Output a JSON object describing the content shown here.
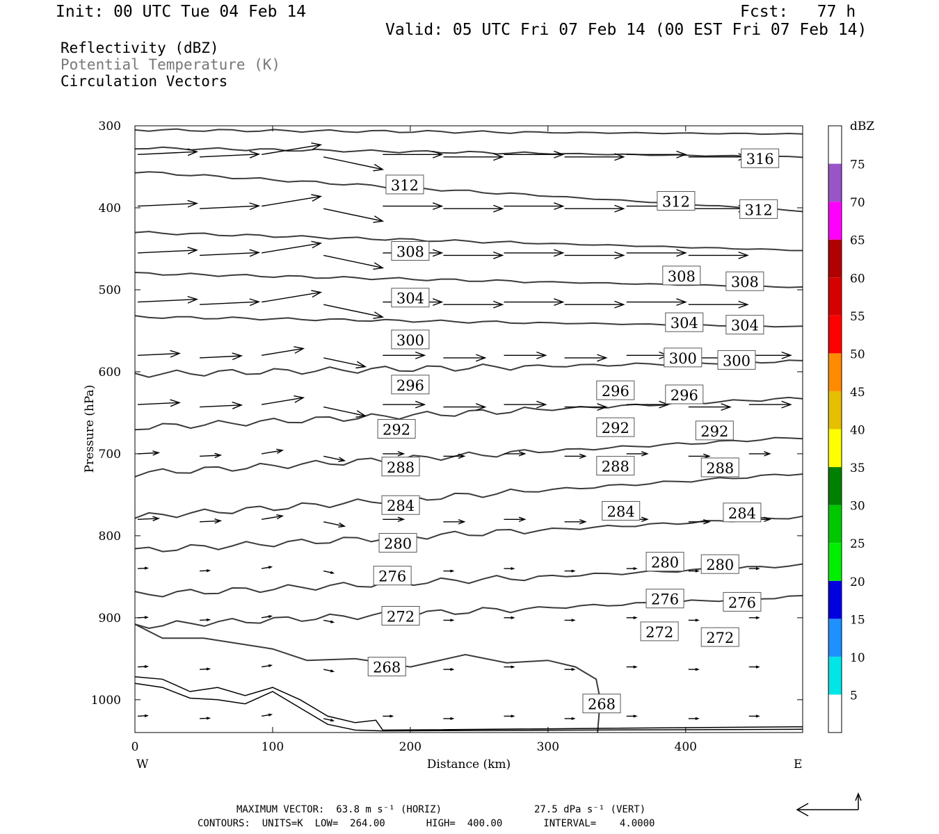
{
  "header": {
    "init": "Init: 00 UTC Tue 04 Feb 14",
    "fcst": "Fcst:   77 h",
    "valid": "Valid: 05 UTC Fri 07 Feb 14 (00 EST Fri 07 Feb 14)"
  },
  "legend": {
    "reflectivity": "Reflectivity (dBZ)",
    "theta": "Potential Temperature (K)",
    "vectors": "Circulation Vectors"
  },
  "footer": {
    "max_vector": "MAXIMUM VECTOR:  63.8 m s⁻¹ (HORIZ)",
    "max_vector_vert": "27.5 dPa s⁻¹ (VERT)",
    "contours": "CONTOURS:  UNITS=K  LOW=  264.00       HIGH=  400.00       INTERVAL=    4.0000"
  },
  "chart_data": {
    "type": "line",
    "xlabel": "Distance (km)",
    "ylabel": "Pressure (hPa)",
    "xlim": [
      0,
      485
    ],
    "ylim": [
      1040,
      300
    ],
    "x_ticks": [
      0,
      100,
      200,
      300,
      400
    ],
    "y_ticks": [
      300,
      400,
      500,
      600,
      700,
      800,
      900,
      1000
    ],
    "x_left_label": "W",
    "x_right_label": "E",
    "colorbar": {
      "unit": "dBZ",
      "ticks": [
        "5",
        "10",
        "15",
        "20",
        "25",
        "30",
        "35",
        "40",
        "45",
        "50",
        "55",
        "60",
        "65",
        "70",
        "75"
      ],
      "colors": [
        "#ffffff",
        "#00e5e5",
        "#1e90ff",
        "#0000e0",
        "#00ee00",
        "#00c800",
        "#008000",
        "#ffff00",
        "#e6c000",
        "#ff8c00",
        "#ff0000",
        "#d60000",
        "#b00000",
        "#ff00ff",
        "#9955c8",
        "#ffffff"
      ]
    },
    "contour_labels": [
      {
        "text": "316",
        "x": 454,
        "p": 340
      },
      {
        "text": "312",
        "x": 196,
        "p": 372
      },
      {
        "text": "312",
        "x": 393,
        "p": 392
      },
      {
        "text": "312",
        "x": 453,
        "p": 402
      },
      {
        "text": "308",
        "x": 200,
        "p": 453
      },
      {
        "text": "308",
        "x": 397,
        "p": 483
      },
      {
        "text": "308",
        "x": 443,
        "p": 490
      },
      {
        "text": "304",
        "x": 200,
        "p": 510
      },
      {
        "text": "304",
        "x": 399,
        "p": 540
      },
      {
        "text": "304",
        "x": 443,
        "p": 543
      },
      {
        "text": "300",
        "x": 200,
        "p": 561
      },
      {
        "text": "300",
        "x": 398,
        "p": 583
      },
      {
        "text": "300",
        "x": 437,
        "p": 586
      },
      {
        "text": "296",
        "x": 200,
        "p": 616
      },
      {
        "text": "296",
        "x": 349,
        "p": 623
      },
      {
        "text": "296",
        "x": 399,
        "p": 628
      },
      {
        "text": "292",
        "x": 190,
        "p": 670
      },
      {
        "text": "292",
        "x": 349,
        "p": 668
      },
      {
        "text": "292",
        "x": 421,
        "p": 672
      },
      {
        "text": "288",
        "x": 193,
        "p": 716
      },
      {
        "text": "288",
        "x": 349,
        "p": 715
      },
      {
        "text": "288",
        "x": 425,
        "p": 717
      },
      {
        "text": "284",
        "x": 193,
        "p": 763
      },
      {
        "text": "284",
        "x": 353,
        "p": 770
      },
      {
        "text": "284",
        "x": 441,
        "p": 772
      },
      {
        "text": "280",
        "x": 191,
        "p": 809
      },
      {
        "text": "280",
        "x": 385,
        "p": 832
      },
      {
        "text": "280",
        "x": 425,
        "p": 835
      },
      {
        "text": "276",
        "x": 187,
        "p": 849
      },
      {
        "text": "276",
        "x": 385,
        "p": 877
      },
      {
        "text": "276",
        "x": 441,
        "p": 881
      },
      {
        "text": "272",
        "x": 193,
        "p": 898
      },
      {
        "text": "272",
        "x": 381,
        "p": 917
      },
      {
        "text": "272",
        "x": 425,
        "p": 924
      },
      {
        "text": "268",
        "x": 183,
        "p": 960
      },
      {
        "text": "268",
        "x": 339,
        "p": 1005
      }
    ]
  }
}
